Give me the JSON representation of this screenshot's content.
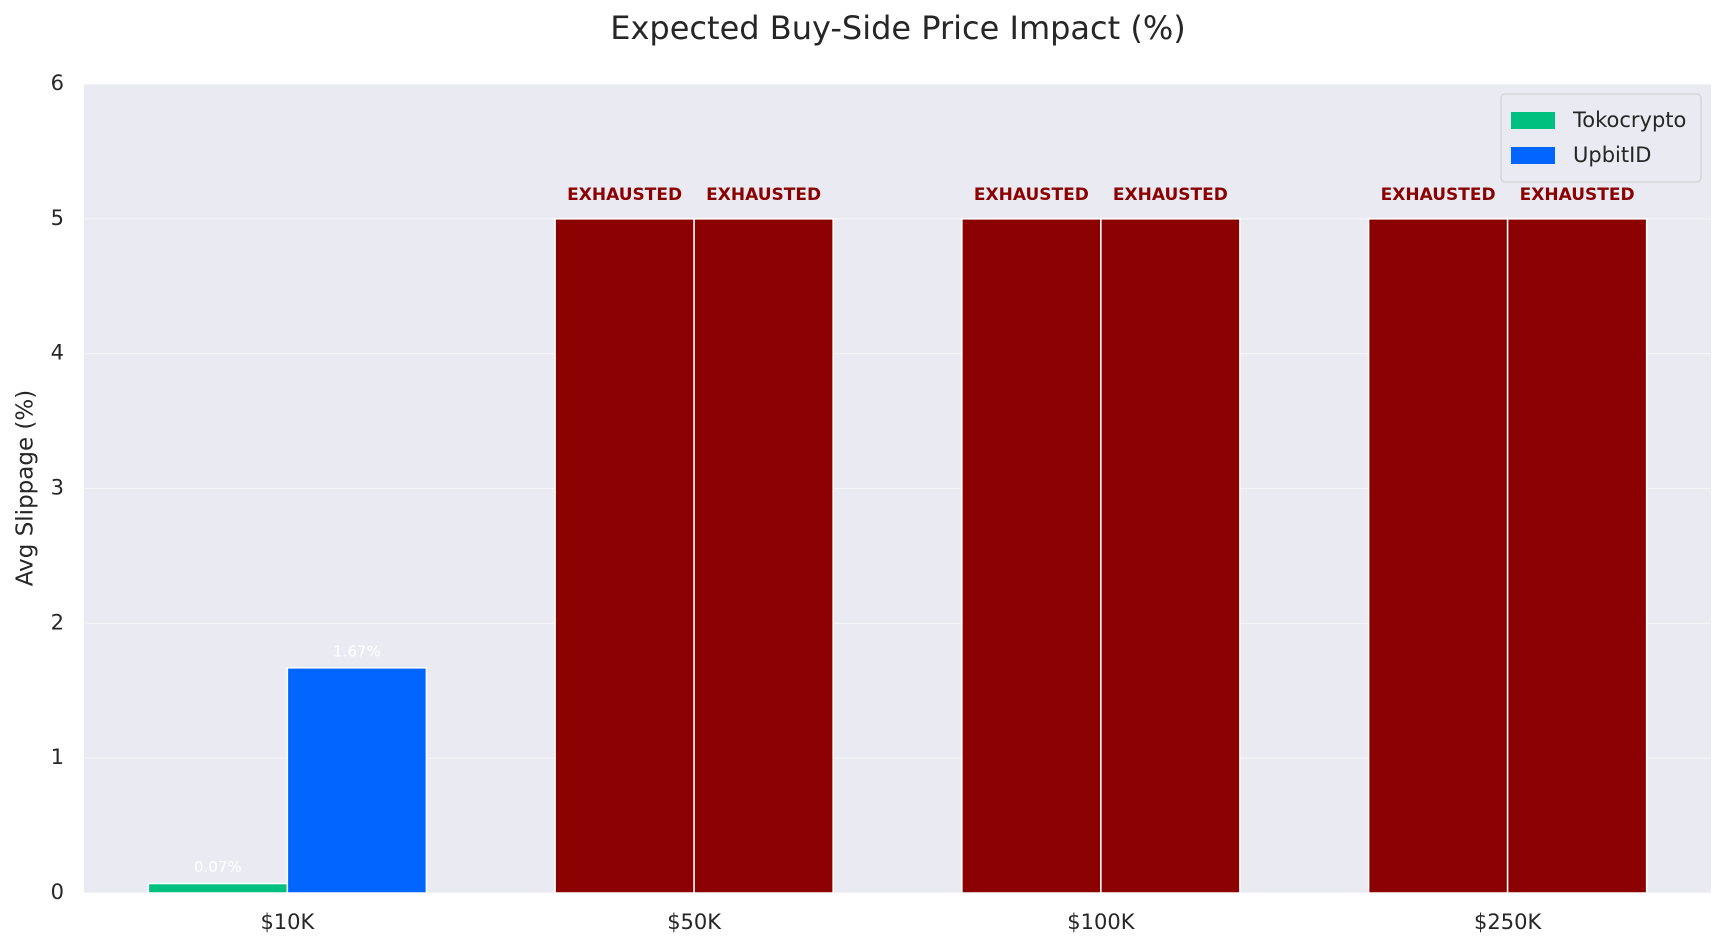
{
  "chart_data": {
    "type": "bar",
    "title": "Expected Buy-Side Price Impact (%)",
    "y_label": "Avg Slippage (%)",
    "categories": [
      "$10K",
      "$50K",
      "$100K",
      "$250K"
    ],
    "series": [
      {
        "name": "Tokocrypto",
        "color": "#00c07f",
        "values": [
          0.07,
          5,
          5,
          5
        ],
        "value_labels": [
          "0.07%",
          "EXHAUSTED",
          "EXHAUSTED",
          "EXHAUSTED"
        ],
        "colors": [
          "#00c07f",
          "#8b0000",
          "#8b0000",
          "#8b0000"
        ],
        "label_colors": [
          "#ffffff",
          "#8b0000",
          "#8b0000",
          "#8b0000"
        ]
      },
      {
        "name": "UpbitID",
        "color": "#0066ff",
        "values": [
          1.67,
          5,
          5,
          5
        ],
        "value_labels": [
          "1.67%",
          "EXHAUSTED",
          "EXHAUSTED",
          "EXHAUSTED"
        ],
        "colors": [
          "#0066ff",
          "#8b0000",
          "#8b0000",
          "#8b0000"
        ],
        "label_colors": [
          "#ffffff",
          "#8b0000",
          "#8b0000",
          "#8b0000"
        ]
      }
    ],
    "ylim": [
      0,
      6
    ],
    "yticks": [
      0,
      1,
      2,
      3,
      4,
      5,
      6
    ],
    "grid": true,
    "legend": "upper right"
  }
}
